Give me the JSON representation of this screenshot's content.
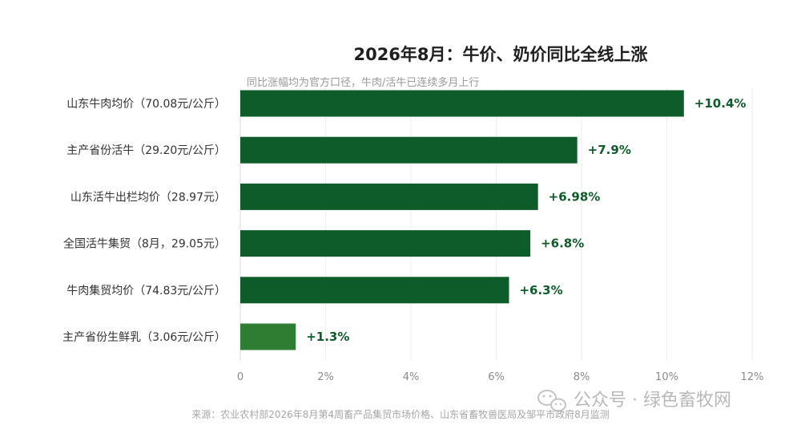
{
  "chart_data": {
    "type": "bar",
    "orientation": "horizontal",
    "title": "2026年8月：牛价、奶价同比全线上涨",
    "subtitle": "同比涨幅均为官方口径，牛肉/活牛已连续多月上行",
    "categories": [
      "山东牛肉均价（70.08元/公斤）",
      "主产省份活牛（29.20元/公斤）",
      "山东活牛出栏均价（28.97元）",
      "全国活牛集贸（8月，29.05元）",
      "牛肉集贸均价（74.83元/公斤）",
      "主产省份生鲜乳（3.06元/公斤）"
    ],
    "values": [
      10.4,
      7.9,
      6.98,
      6.8,
      6.3,
      1.3
    ],
    "value_labels": [
      "+10.4%",
      "+7.9%",
      "+6.98%",
      "+6.8%",
      "+6.3%",
      "+1.3%"
    ],
    "bar_colors": [
      "#0e5c2a",
      "#0e5c2a",
      "#0e5c2a",
      "#0e5c2a",
      "#0e5c2a",
      "#2e7d32"
    ],
    "x_ticks": [
      "0",
      "2%",
      "4%",
      "6%",
      "8%",
      "10%",
      "12%"
    ],
    "xlim": [
      0,
      12
    ],
    "grid": true,
    "legend": "none",
    "source": "来源：农业农村部2026年8月第4周畜产品集贸市场价格、山东省畜牧兽医局及邹平市政府8月监测",
    "watermark": "公众号 · 绿色畜牧网"
  },
  "colors": {
    "bar": "#0e5c2a",
    "bar_highlight": "#2e7d32",
    "value_label": "#0e5c2a"
  }
}
